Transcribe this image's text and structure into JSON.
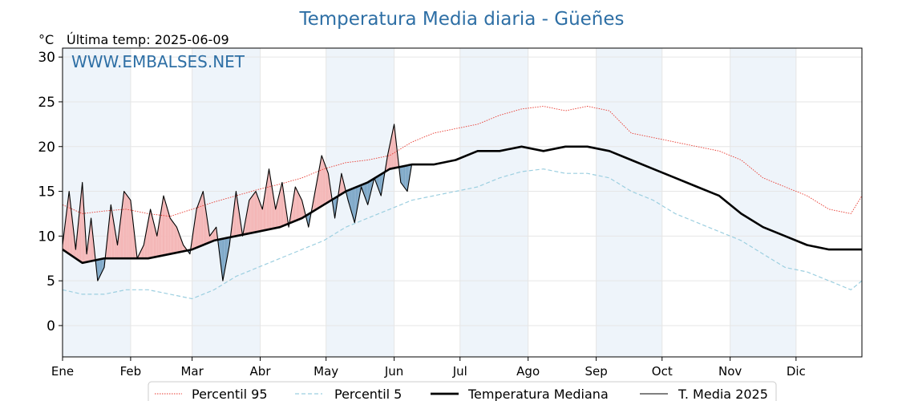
{
  "title": "Temperatura Media diaria - Güeñes",
  "unit": "°C",
  "last_temp": "Última temp: 2025-06-09",
  "watermark": "WWW.EMBALSES.NET",
  "colors": {
    "title": "#2e6fa5",
    "p95": "#e8392f",
    "p5": "#9ccfe0",
    "median": "#000000",
    "current": "#000000",
    "fill_above": "#f4b6b6",
    "fill_below": "#7ea8c8",
    "band": "#eef4fa"
  },
  "chart_data": {
    "type": "line",
    "x_unit": "day of year",
    "xlim": [
      1,
      365
    ],
    "ylim": [
      -3.5,
      31
    ],
    "yticks": [
      0,
      5,
      10,
      15,
      20,
      25,
      30
    ],
    "months": [
      "Ene",
      "Feb",
      "Mar",
      "Abr",
      "May",
      "Jun",
      "Jul",
      "Ago",
      "Sep",
      "Oct",
      "Nov",
      "Dic"
    ],
    "month_start_days": [
      1,
      32,
      60,
      91,
      121,
      152,
      182,
      213,
      244,
      274,
      305,
      335
    ],
    "grid": true,
    "legend_position": "bottom",
    "series": [
      {
        "name": "Percentil 95",
        "style": "dotted",
        "color": "#e8392f",
        "x": [
          1,
          10,
          20,
          30,
          40,
          50,
          60,
          70,
          80,
          90,
          100,
          110,
          120,
          130,
          140,
          150,
          160,
          170,
          180,
          190,
          200,
          210,
          220,
          230,
          240,
          250,
          260,
          270,
          280,
          290,
          300,
          310,
          320,
          330,
          340,
          350,
          360,
          365
        ],
        "y": [
          13.5,
          12.5,
          12.8,
          13.0,
          12.5,
          12.2,
          13.0,
          13.8,
          14.5,
          15.2,
          15.8,
          16.5,
          17.5,
          18.2,
          18.5,
          19.0,
          20.5,
          21.5,
          22.0,
          22.5,
          23.5,
          24.2,
          24.5,
          24.0,
          24.5,
          24.0,
          21.5,
          21.0,
          20.5,
          20.0,
          19.5,
          18.5,
          16.5,
          15.5,
          14.5,
          13.0,
          12.5,
          14.5
        ]
      },
      {
        "name": "Percentil 5",
        "style": "dashed",
        "color": "#9ccfe0",
        "x": [
          1,
          10,
          20,
          30,
          40,
          50,
          60,
          70,
          80,
          90,
          100,
          110,
          120,
          130,
          140,
          150,
          160,
          170,
          180,
          190,
          200,
          210,
          220,
          230,
          240,
          250,
          260,
          270,
          280,
          290,
          300,
          310,
          320,
          330,
          340,
          350,
          360,
          365
        ],
        "y": [
          4.0,
          3.5,
          3.5,
          4.0,
          4.0,
          3.5,
          3.0,
          4.0,
          5.5,
          6.5,
          7.5,
          8.5,
          9.5,
          11.0,
          12.0,
          13.0,
          14.0,
          14.5,
          15.0,
          15.5,
          16.5,
          17.2,
          17.5,
          17.0,
          17.0,
          16.5,
          15.0,
          14.0,
          12.5,
          11.5,
          10.5,
          9.5,
          8.0,
          6.5,
          6.0,
          5.0,
          4.0,
          5.0
        ]
      },
      {
        "name": "Temperatura Mediana",
        "style": "solid-thick",
        "color": "#000000",
        "x": [
          1,
          10,
          20,
          30,
          40,
          50,
          60,
          70,
          80,
          90,
          100,
          110,
          120,
          130,
          140,
          150,
          160,
          170,
          180,
          190,
          200,
          210,
          220,
          230,
          240,
          250,
          260,
          270,
          280,
          290,
          300,
          310,
          320,
          330,
          340,
          350,
          360,
          365
        ],
        "y": [
          8.5,
          7.0,
          7.5,
          7.5,
          7.5,
          8.0,
          8.5,
          9.5,
          10.0,
          10.5,
          11.0,
          12.0,
          13.5,
          15.0,
          16.0,
          17.5,
          18.0,
          18.0,
          18.5,
          19.5,
          19.5,
          20.0,
          19.5,
          20.0,
          20.0,
          19.5,
          18.5,
          17.5,
          16.5,
          15.5,
          14.5,
          12.5,
          11.0,
          10.0,
          9.0,
          8.5,
          8.5,
          8.5
        ]
      },
      {
        "name": "T. Media 2025",
        "style": "solid-thin",
        "color": "#000000",
        "x": [
          1,
          4,
          7,
          10,
          12,
          14,
          17,
          20,
          23,
          26,
          29,
          32,
          35,
          38,
          41,
          44,
          47,
          50,
          53,
          56,
          59,
          62,
          65,
          68,
          71,
          74,
          77,
          80,
          83,
          86,
          89,
          92,
          95,
          98,
          101,
          104,
          107,
          110,
          113,
          116,
          119,
          122,
          125,
          128,
          131,
          134,
          137,
          140,
          143,
          146,
          149,
          152,
          155,
          158,
          160
        ],
        "y": [
          9.0,
          15.0,
          8.5,
          16.0,
          8.0,
          12.0,
          5.0,
          6.5,
          13.5,
          9.0,
          15.0,
          14.0,
          7.5,
          9.0,
          13.0,
          10.0,
          14.5,
          12.0,
          11.0,
          9.0,
          8.0,
          13.0,
          15.0,
          10.0,
          11.0,
          5.0,
          9.0,
          15.0,
          10.0,
          14.0,
          15.0,
          13.0,
          17.5,
          13.0,
          16.0,
          11.0,
          15.5,
          14.0,
          11.0,
          15.0,
          19.0,
          17.0,
          12.0,
          17.0,
          14.0,
          11.5,
          15.5,
          13.5,
          16.5,
          14.5,
          19.0,
          22.5,
          16.0,
          15.0,
          18.0
        ]
      }
    ]
  }
}
